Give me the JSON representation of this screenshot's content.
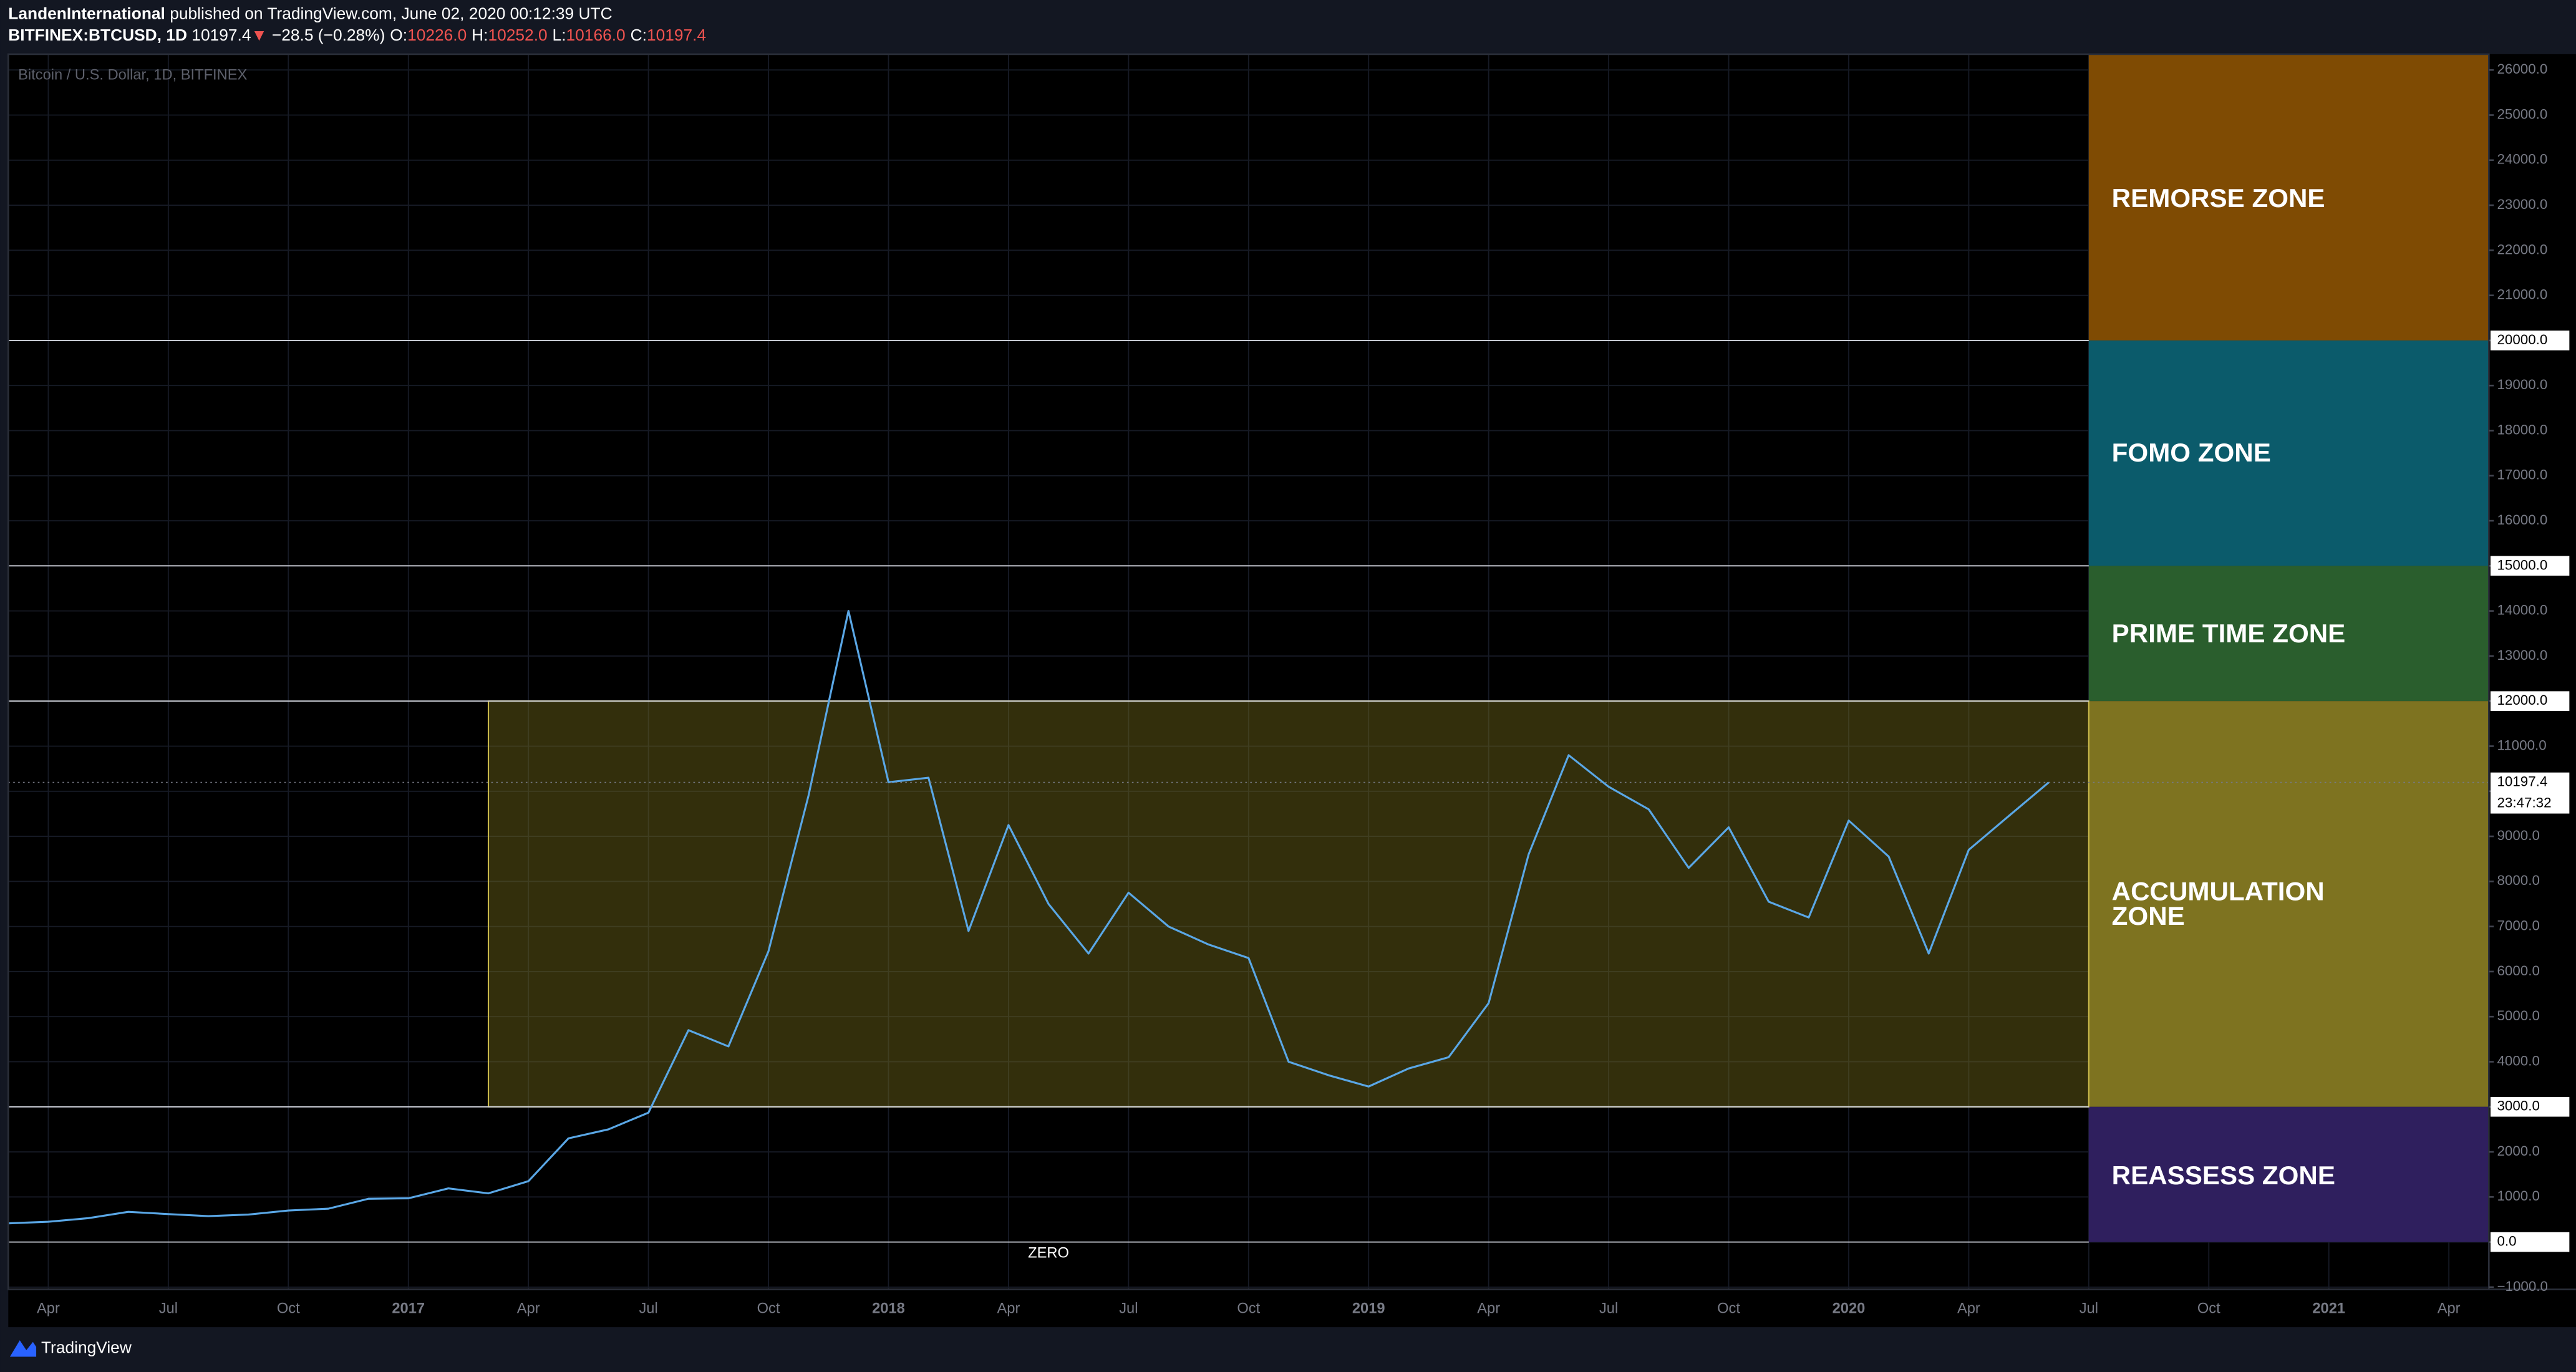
{
  "header": {
    "author": "LandenInternational",
    "published": "published on TradingView.com, June 02, 2020 00:12:39 UTC",
    "symbol": "BITFINEX:BTCUSD, 1D",
    "last": "10197.4",
    "arrow": "▼",
    "change": "−28.5 (−0.28%)",
    "ohlc": [
      {
        "label": "O:",
        "value": "10226.0"
      },
      {
        "label": "H:",
        "value": "10252.0"
      },
      {
        "label": "L:",
        "value": "10166.0"
      },
      {
        "label": "C:",
        "value": "10197.4"
      }
    ]
  },
  "footer": {
    "brand": "TradingView"
  },
  "chart_data": {
    "type": "line",
    "title": "Bitcoin / U.S. Dollar, 1D, BITFINEX",
    "color": "#5aa7e6",
    "x": [
      "2016-03",
      "2016-04",
      "2016-05",
      "2016-06",
      "2016-07",
      "2016-08",
      "2016-09",
      "2016-10",
      "2016-11",
      "2016-12",
      "2017-01",
      "2017-02",
      "2017-03",
      "2017-04",
      "2017-05",
      "2017-06",
      "2017-07",
      "2017-08",
      "2017-09",
      "2017-10",
      "2017-11",
      "2017-12",
      "2018-01",
      "2018-02",
      "2018-03",
      "2018-04",
      "2018-05",
      "2018-06",
      "2018-07",
      "2018-08",
      "2018-09",
      "2018-10",
      "2018-11",
      "2018-12",
      "2019-01",
      "2019-02",
      "2019-03",
      "2019-04",
      "2019-05",
      "2019-06",
      "2019-07",
      "2019-08",
      "2019-09",
      "2019-10",
      "2019-11",
      "2019-12",
      "2020-01",
      "2020-02",
      "2020-03",
      "2020-04",
      "2020-05",
      "2020-06"
    ],
    "values": [
      415,
      450,
      530,
      670,
      620,
      575,
      610,
      700,
      740,
      960,
      970,
      1190,
      1080,
      1350,
      2300,
      2500,
      2870,
      4700,
      4340,
      6450,
      9900,
      14000,
      10200,
      10300,
      6900,
      9250,
      7500,
      6400,
      7750,
      7000,
      6600,
      6300,
      4000,
      3700,
      3450,
      3850,
      4100,
      5300,
      8600,
      10800,
      10100,
      9600,
      8300,
      9200,
      7550,
      7200,
      9350,
      8550,
      6400,
      8700,
      9450,
      10197.4
    ],
    "xlim": [
      "2016-03",
      "2021-05"
    ],
    "xticks": [
      {
        "value": "2016-04",
        "label": "Apr"
      },
      {
        "value": "2016-07",
        "label": "Jul"
      },
      {
        "value": "2016-10",
        "label": "Oct"
      },
      {
        "value": "2017-01",
        "label": "2017"
      },
      {
        "value": "2017-04",
        "label": "Apr"
      },
      {
        "value": "2017-07",
        "label": "Jul"
      },
      {
        "value": "2017-10",
        "label": "Oct"
      },
      {
        "value": "2018-01",
        "label": "2018"
      },
      {
        "value": "2018-04",
        "label": "Apr"
      },
      {
        "value": "2018-07",
        "label": "Jul"
      },
      {
        "value": "2018-10",
        "label": "Oct"
      },
      {
        "value": "2019-01",
        "label": "2019"
      },
      {
        "value": "2019-04",
        "label": "Apr"
      },
      {
        "value": "2019-07",
        "label": "Jul"
      },
      {
        "value": "2019-10",
        "label": "Oct"
      },
      {
        "value": "2020-01",
        "label": "2020"
      },
      {
        "value": "2020-04",
        "label": "Apr"
      },
      {
        "value": "2020-07",
        "label": "Jul"
      },
      {
        "value": "2020-10",
        "label": "Oct"
      },
      {
        "value": "2021-01",
        "label": "2021"
      },
      {
        "value": "2021-04",
        "label": "Apr"
      }
    ],
    "ylim": [
      -1050,
      26350
    ],
    "yticks": [
      {
        "value": -1000,
        "label": "−1000.0"
      },
      {
        "value": 0,
        "label": "0.0"
      },
      {
        "value": 1000,
        "label": "1000.0"
      },
      {
        "value": 2000,
        "label": "2000.0"
      },
      {
        "value": 3000,
        "label": "3000.0"
      },
      {
        "value": 4000,
        "label": "4000.0"
      },
      {
        "value": 5000,
        "label": "5000.0"
      },
      {
        "value": 6000,
        "label": "6000.0"
      },
      {
        "value": 7000,
        "label": "7000.0"
      },
      {
        "value": 8000,
        "label": "8000.0"
      },
      {
        "value": 9000,
        "label": "9000.0"
      },
      {
        "value": 10000,
        "label": "10000.0"
      },
      {
        "value": 11000,
        "label": "11000.0"
      },
      {
        "value": 12000,
        "label": "12000.0"
      },
      {
        "value": 13000,
        "label": "13000.0"
      },
      {
        "value": 14000,
        "label": "14000.0"
      },
      {
        "value": 15000,
        "label": "15000.0"
      },
      {
        "value": 16000,
        "label": "16000.0"
      },
      {
        "value": 17000,
        "label": "17000.0"
      },
      {
        "value": 18000,
        "label": "18000.0"
      },
      {
        "value": 19000,
        "label": "19000.0"
      },
      {
        "value": 20000,
        "label": "20000.0"
      },
      {
        "value": 21000,
        "label": "21000.0"
      },
      {
        "value": 22000,
        "label": "22000.0"
      },
      {
        "value": 23000,
        "label": "23000.0"
      },
      {
        "value": 24000,
        "label": "24000.0"
      },
      {
        "value": 25000,
        "label": "25000.0"
      },
      {
        "value": 26000,
        "label": "26000.0"
      }
    ],
    "grid": true,
    "levels": [
      {
        "value": 20000,
        "label": "20000.0"
      },
      {
        "value": 15000,
        "label": "15000.0"
      },
      {
        "value": 12000,
        "label": "12000.0"
      },
      {
        "value": 3000,
        "label": "3000.0"
      },
      {
        "value": 0,
        "label": "0.0"
      }
    ],
    "zero_note": {
      "value": 0,
      "text": "ZERO"
    },
    "last_price": {
      "value": 10197.4,
      "label": "10197.4",
      "countdown": "23:47:32"
    },
    "range_box": {
      "x_start": "2017-03",
      "from": 3000,
      "to": 12000,
      "color": "#7a6f1d"
    },
    "zones_start": "2020-07",
    "zones": [
      {
        "label": "REMORSE ZONE",
        "from": 20000,
        "color": "#7f4b03"
      },
      {
        "label": "FOMO ZONE",
        "from": 15000,
        "to": 20000,
        "color": "#0b5b6b"
      },
      {
        "label": "PRIME TIME ZONE",
        "from": 12000,
        "to": 15000,
        "color": "#2a5e2d"
      },
      {
        "label": "ACCUMULATION ZONE",
        "from": 3000,
        "to": 12000,
        "color": "#7e7320"
      },
      {
        "label": "REASSESS ZONE",
        "from": 0,
        "to": 3000,
        "color": "#2f1f5e"
      }
    ]
  }
}
